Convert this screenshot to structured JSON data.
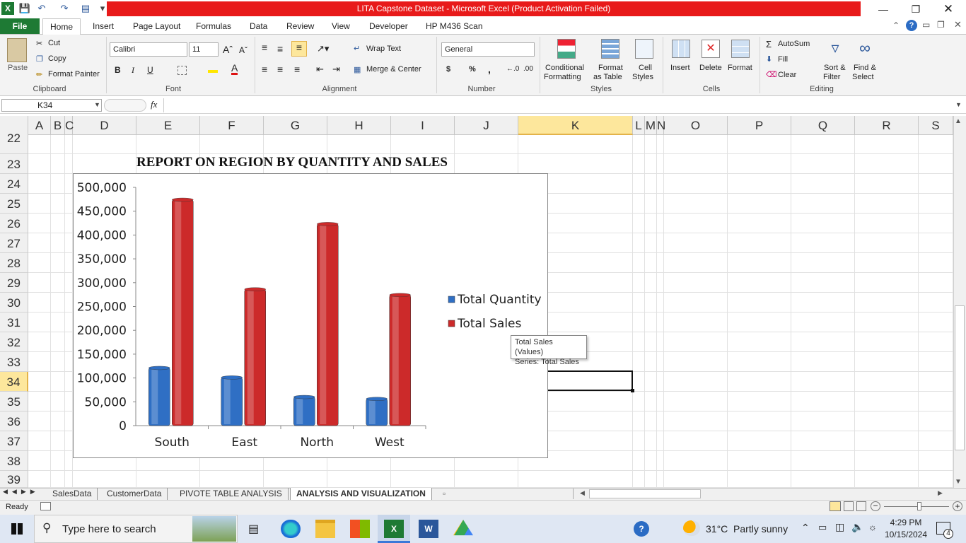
{
  "window": {
    "title": "LITA Capstone Dataset  -  Microsoft Excel (Product Activation Failed)"
  },
  "tabs": [
    "File",
    "Home",
    "Insert",
    "Page Layout",
    "Formulas",
    "Data",
    "Review",
    "View",
    "Developer",
    "HP M436 Scan"
  ],
  "ribbon": {
    "clipboard": {
      "paste": "Paste",
      "cut": "Cut",
      "copy": "Copy",
      "format_painter": "Format Painter",
      "label": "Clipboard"
    },
    "font": {
      "name": "Calibri",
      "size": "11",
      "label": "Font",
      "bold": "B",
      "italic": "I",
      "underline": "U"
    },
    "alignment": {
      "wrap": "Wrap Text",
      "merge": "Merge & Center",
      "label": "Alignment"
    },
    "number": {
      "format": "General",
      "label": "Number",
      "currency": "$",
      "percent": "%",
      "comma": ","
    },
    "styles": {
      "cond1": "Conditional",
      "cond2": "Formatting",
      "table1": "Format",
      "table2": "as Table",
      "cell1": "Cell",
      "cell2": "Styles",
      "label": "Styles"
    },
    "cells": {
      "insert": "Insert",
      "delete": "Delete",
      "format": "Format",
      "label": "Cells"
    },
    "editing": {
      "autosum": "AutoSum",
      "fill": "Fill",
      "clear": "Clear",
      "sort1": "Sort &",
      "sort2": "Filter",
      "find1": "Find &",
      "find2": "Select",
      "label": "Editing"
    }
  },
  "formula_bar": {
    "name_box": "K34",
    "fx": "fx",
    "value": ""
  },
  "columns": [
    "A",
    "B",
    "C",
    "D",
    "E",
    "F",
    "G",
    "H",
    "I",
    "J",
    "K",
    "L",
    "M",
    "N",
    "O",
    "P",
    "Q",
    "R",
    "S"
  ],
  "rows": [
    "22",
    "23",
    "24",
    "25",
    "26",
    "27",
    "28",
    "29",
    "30",
    "31",
    "32",
    "33",
    "34",
    "35",
    "36",
    "37",
    "38",
    "39"
  ],
  "active_cell": "K34",
  "report_title": "REPORT ON REGION BY QUANTITY AND SALES",
  "chart_data": {
    "type": "bar",
    "title": "",
    "categories": [
      "South",
      "East",
      "North",
      "West"
    ],
    "series": [
      {
        "name": "Total Quantity",
        "color": "#2f6fc4",
        "values": [
          121000,
          101000,
          60000,
          56000
        ]
      },
      {
        "name": "Total Sales",
        "color": "#cc2a2a",
        "values": [
          474000,
          286000,
          423000,
          274000
        ]
      }
    ],
    "ylim": [
      0,
      500000
    ],
    "yticks": [
      "0",
      "50,000",
      "100,000",
      "150,000",
      "200,000",
      "250,000",
      "300,000",
      "350,000",
      "400,000",
      "450,000",
      "500,000"
    ],
    "legend": "right",
    "grid": false
  },
  "tooltip": {
    "line1": "Total Sales (Values)",
    "line2": "Series: Total Sales"
  },
  "sheets": [
    "SalesData",
    "CustomerData",
    "PIVOTE TABLE ANALYSIS",
    "ANALYSIS AND VISUALIZATION"
  ],
  "active_sheet": "ANALYSIS AND VISUALIZATION",
  "status": "Ready",
  "taskbar": {
    "search": "Type here to search",
    "weather": "31°C  Partly sunny",
    "time": "4:29 PM",
    "date": "10/15/2024",
    "notif": "4"
  }
}
